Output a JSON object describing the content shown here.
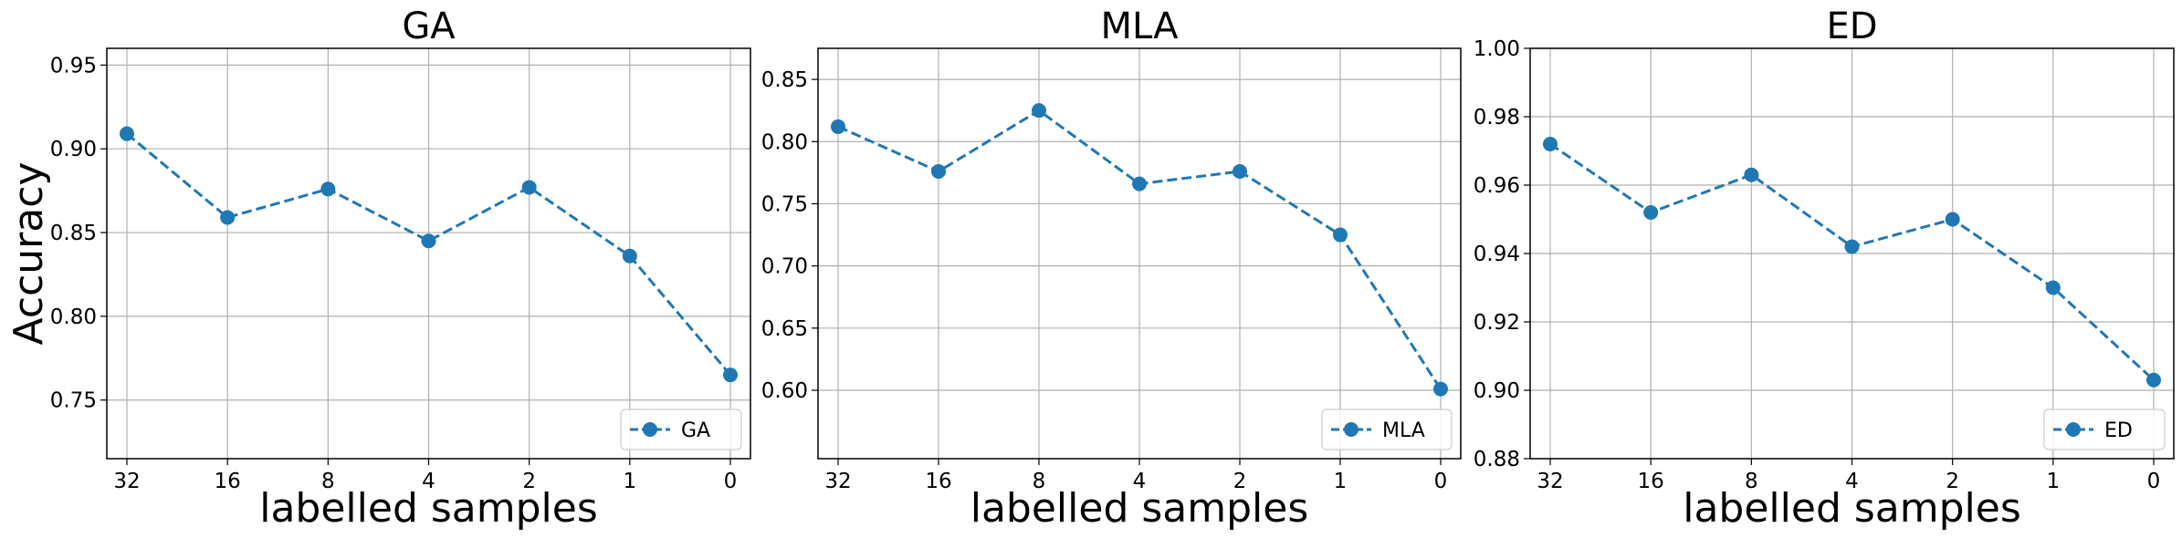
{
  "chart_data": [
    {
      "type": "line",
      "title": "GA",
      "xlabel": "labelled samples",
      "ylabel": "Accuracy",
      "categories": [
        "32",
        "16",
        "8",
        "4",
        "2",
        "1",
        "0"
      ],
      "series": [
        {
          "name": "GA",
          "values": [
            0.909,
            0.859,
            0.876,
            0.845,
            0.877,
            0.836,
            0.765
          ],
          "color": "#1f77b4"
        }
      ],
      "ylim": [
        0.715,
        0.96
      ],
      "yticks": [
        "0.75",
        "0.80",
        "0.85",
        "0.90",
        "0.95"
      ],
      "grid": true,
      "legend": "lower-right"
    },
    {
      "type": "line",
      "title": "MLA",
      "xlabel": "labelled samples",
      "ylabel": "",
      "categories": [
        "32",
        "16",
        "8",
        "4",
        "2",
        "1",
        "0"
      ],
      "series": [
        {
          "name": "MLA",
          "values": [
            0.812,
            0.776,
            0.825,
            0.766,
            0.776,
            0.725,
            0.601
          ],
          "color": "#1f77b4"
        }
      ],
      "ylim": [
        0.545,
        0.875
      ],
      "yticks": [
        "0.60",
        "0.65",
        "0.70",
        "0.75",
        "0.80",
        "0.85"
      ],
      "grid": true,
      "legend": "lower-right"
    },
    {
      "type": "line",
      "title": "ED",
      "xlabel": "labelled samples",
      "ylabel": "",
      "categories": [
        "32",
        "16",
        "8",
        "4",
        "2",
        "1",
        "0"
      ],
      "series": [
        {
          "name": "ED",
          "values": [
            0.972,
            0.952,
            0.963,
            0.942,
            0.95,
            0.93,
            0.903
          ],
          "color": "#1f77b4"
        }
      ],
      "ylim": [
        0.88,
        1.0
      ],
      "yticks": [
        "0.88",
        "0.90",
        "0.92",
        "0.94",
        "0.96",
        "0.98",
        "1.00"
      ],
      "grid": true,
      "legend": "lower-right"
    }
  ]
}
